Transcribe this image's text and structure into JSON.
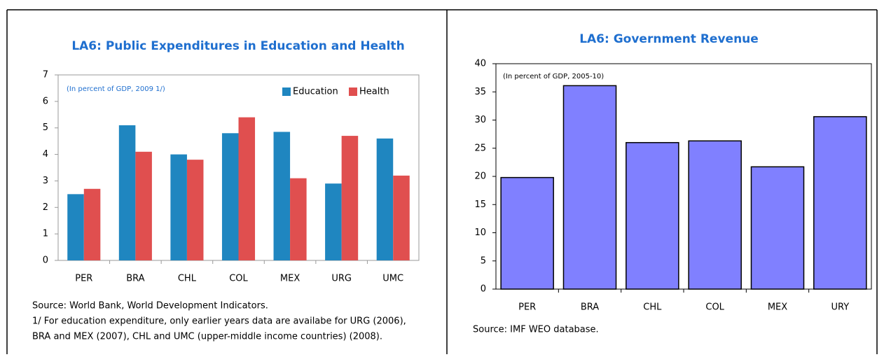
{
  "chart_data": [
    {
      "type": "bar",
      "title": "LA6: Public Expenditures in Education and Health",
      "annotation": "(In percent of GDP, 2009 1/)",
      "annotation_color": "#1f6fcf",
      "categories": [
        "PER",
        "BRA",
        "CHL",
        "COL",
        "MEX",
        "URG",
        "UMC"
      ],
      "series": [
        {
          "name": "Education",
          "color": "#1f86c0",
          "values": [
            2.5,
            5.1,
            4.0,
            4.8,
            4.85,
            2.9,
            4.6
          ]
        },
        {
          "name": "Health",
          "color": "#e04f4f",
          "values": [
            2.7,
            4.1,
            3.8,
            5.4,
            3.1,
            4.7,
            3.2
          ]
        }
      ],
      "ylim": [
        0,
        7
      ],
      "yticks": [
        0,
        1,
        2,
        3,
        4,
        5,
        6,
        7
      ],
      "legend": "upper right",
      "notes": [
        "Source: World Bank, World Development Indicators.",
        "1/ For education expenditure, only earlier years data are availabe for URG (2006),",
        "BRA and MEX (2007), CHL and UMC (upper-middle income countries) (2008)."
      ]
    },
    {
      "type": "bar",
      "title": "LA6: Government Revenue",
      "annotation": "(In percent of GDP, 2005-10)",
      "annotation_color": "#000000",
      "categories": [
        "PER",
        "BRA",
        "CHL",
        "COL",
        "MEX",
        "URY"
      ],
      "values": [
        19.8,
        36.1,
        26.0,
        26.3,
        21.7,
        30.6
      ],
      "color": "#8080ff",
      "edgecolor": "#000000",
      "ylim": [
        0,
        40
      ],
      "yticks": [
        0,
        5,
        10,
        15,
        20,
        25,
        30,
        35,
        40
      ],
      "notes": [
        "Source: IMF WEO database."
      ]
    }
  ]
}
